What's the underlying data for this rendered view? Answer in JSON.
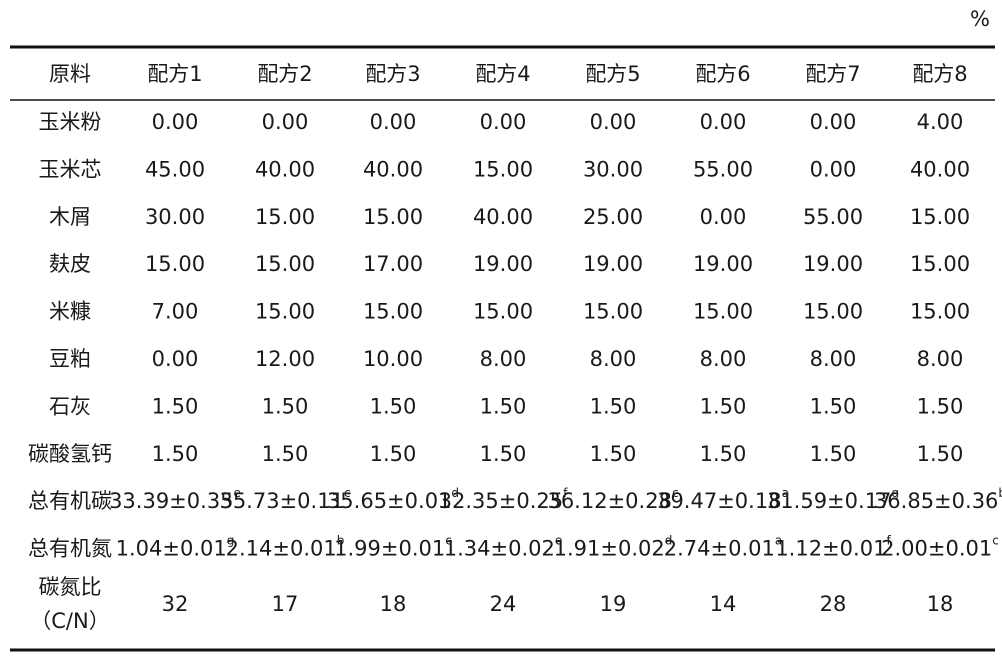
{
  "unit": "%",
  "table": {
    "header": [
      "原料",
      "配方1",
      "配方2",
      "配方3",
      "配方4",
      "配方5",
      "配方6",
      "配方7",
      "配方8"
    ],
    "rows": [
      {
        "label": "玉米粉",
        "cells": [
          "0.00",
          "0.00",
          "0.00",
          "0.00",
          "0.00",
          "0.00",
          "0.00",
          "4.00"
        ]
      },
      {
        "label": "玉米芯",
        "cells": [
          "45.00",
          "40.00",
          "40.00",
          "15.00",
          "30.00",
          "55.00",
          "0.00",
          "40.00"
        ]
      },
      {
        "label": "木屑",
        "cells": [
          "30.00",
          "15.00",
          "15.00",
          "40.00",
          "25.00",
          "0.00",
          "55.00",
          "15.00"
        ]
      },
      {
        "label": "麸皮",
        "cells": [
          "15.00",
          "15.00",
          "17.00",
          "19.00",
          "19.00",
          "19.00",
          "19.00",
          "15.00"
        ]
      },
      {
        "label": "米糠",
        "cells": [
          "7.00",
          "15.00",
          "15.00",
          "15.00",
          "15.00",
          "15.00",
          "15.00",
          "15.00"
        ]
      },
      {
        "label": "豆粕",
        "cells": [
          "0.00",
          "12.00",
          "10.00",
          "8.00",
          "8.00",
          "8.00",
          "8.00",
          "8.00"
        ]
      },
      {
        "label": "石灰",
        "cells": [
          "1.50",
          "1.50",
          "1.50",
          "1.50",
          "1.50",
          "1.50",
          "1.50",
          "1.50"
        ]
      },
      {
        "label": "碳酸氢钙",
        "cells": [
          "1.50",
          "1.50",
          "1.50",
          "1.50",
          "1.50",
          "1.50",
          "1.50",
          "1.50"
        ]
      },
      {
        "label": "总有机碳",
        "cells": [
          {
            "value": "33.39±0.35",
            "sup": "e"
          },
          {
            "value": "35.73±0.11",
            "sup": "c"
          },
          {
            "value": "35.65±0.01",
            "sup": "d"
          },
          {
            "value": "32.35±0.25",
            "sup": "f"
          },
          {
            "value": "36.12±0.28",
            "sup": "c"
          },
          {
            "value": "39.47±0.18",
            "sup": "a"
          },
          {
            "value": "31.59±0.17",
            "sup": "g"
          },
          {
            "value": "36.85±0.36",
            "sup": "b"
          }
        ]
      },
      {
        "label": "总有机氮",
        "cells": [
          {
            "value": "1.04±0.01",
            "sup": "g"
          },
          {
            "value": "2.14±0.01",
            "sup": "b"
          },
          {
            "value": "1.99±0.01",
            "sup": "c"
          },
          {
            "value": "1.34±0.02",
            "sup": "e"
          },
          {
            "value": "1.91±0.02",
            "sup": "d"
          },
          {
            "value": "2.74±0.01",
            "sup": "a"
          },
          {
            "value": "1.12±0.01",
            "sup": "f"
          },
          {
            "value": "2.00±0.01",
            "sup": "c"
          }
        ]
      },
      {
        "label": "碳氮比",
        "label_note": "（C/N）",
        "cells": [
          "32",
          "17",
          "18",
          "24",
          "19",
          "14",
          "28",
          "18"
        ]
      }
    ]
  }
}
